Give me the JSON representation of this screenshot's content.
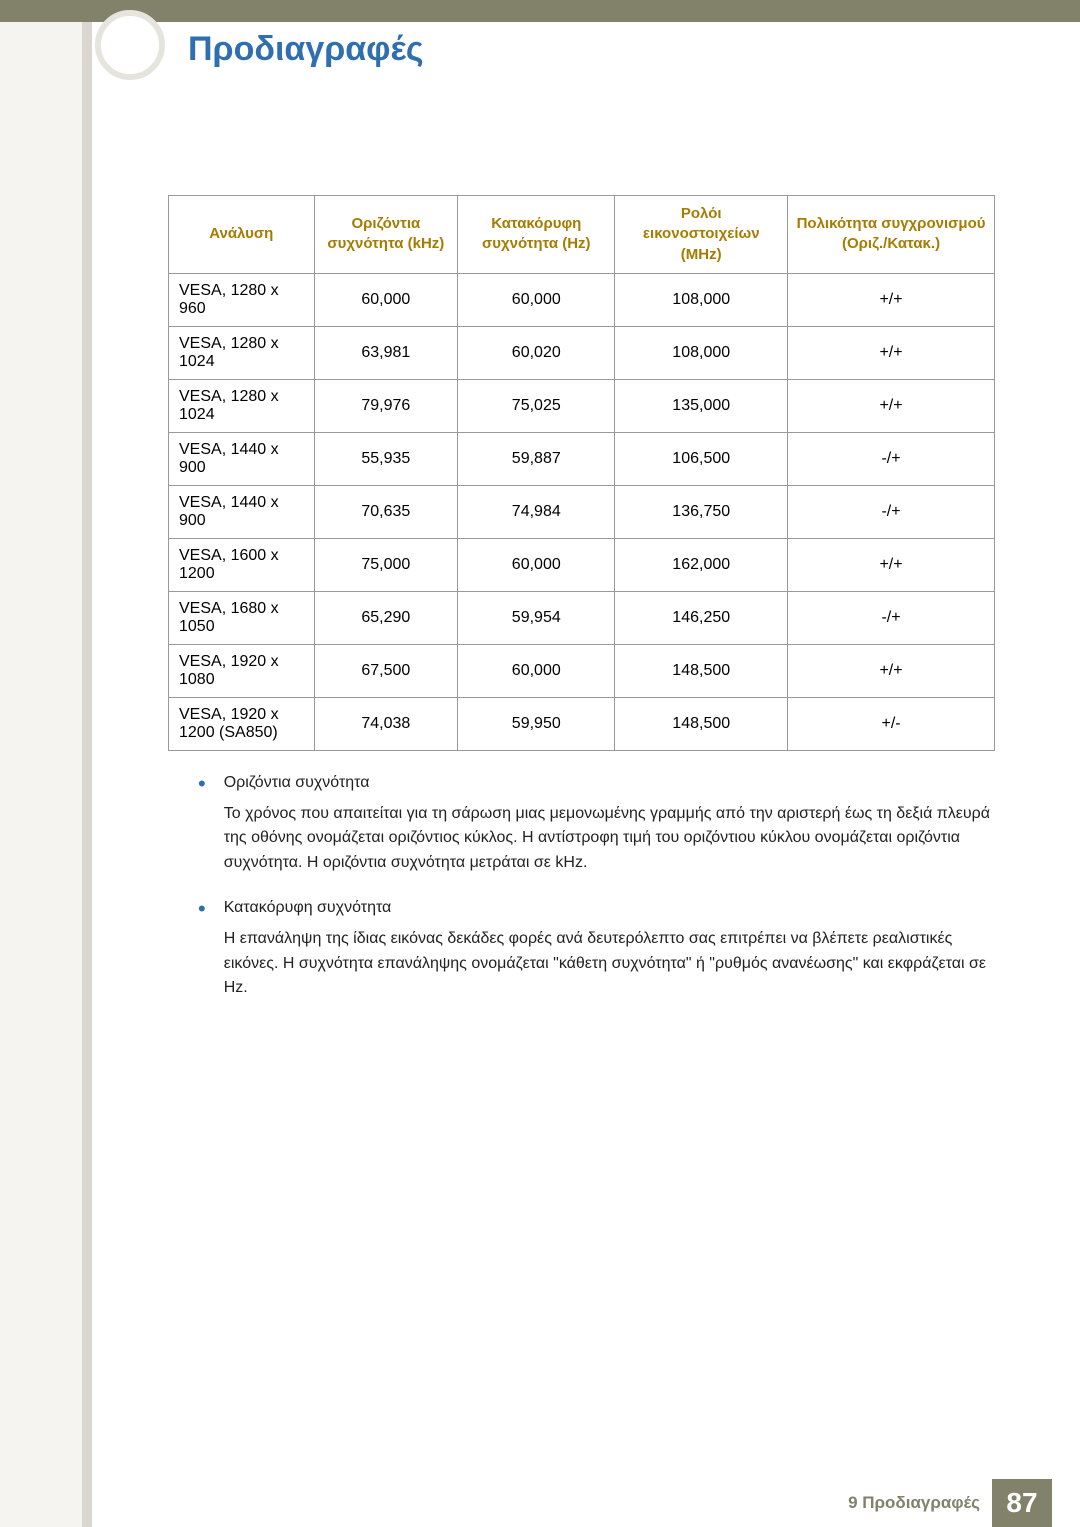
{
  "page_title": "Προδιαγραφές",
  "table": {
    "headers": {
      "resolution": "Ανάλυση",
      "hfreq": "Οριζόντια συχνότητα (kHz)",
      "vfreq": "Κατακόρυφη συχνότητα (Hz)",
      "pclock": "Ρολόι εικονοστοιχείων (MHz)",
      "polarity": "Πολικότητα συγχρονισμού (Οριζ./Κατακ.)"
    },
    "rows": [
      {
        "res": "VESA, 1280 x 960",
        "h": "60,000",
        "v": "60,000",
        "p": "108,000",
        "pol": "+/+"
      },
      {
        "res": "VESA, 1280 x 1024",
        "h": "63,981",
        "v": "60,020",
        "p": "108,000",
        "pol": "+/+"
      },
      {
        "res": "VESA, 1280 x 1024",
        "h": "79,976",
        "v": "75,025",
        "p": "135,000",
        "pol": "+/+"
      },
      {
        "res": "VESA, 1440 x 900",
        "h": "55,935",
        "v": "59,887",
        "p": "106,500",
        "pol": "-/+"
      },
      {
        "res": "VESA, 1440 x 900",
        "h": "70,635",
        "v": "74,984",
        "p": "136,750",
        "pol": "-/+"
      },
      {
        "res": "VESA, 1600 x 1200",
        "h": "75,000",
        "v": "60,000",
        "p": "162,000",
        "pol": "+/+"
      },
      {
        "res": "VESA, 1680 x 1050",
        "h": "65,290",
        "v": "59,954",
        "p": "146,250",
        "pol": "-/+"
      },
      {
        "res": "VESA, 1920 x 1080",
        "h": "67,500",
        "v": "60,000",
        "p": "148,500",
        "pol": "+/+"
      },
      {
        "res": "VESA, 1920 x 1200 (SA850)",
        "h": "74,038",
        "v": "59,950",
        "p": "148,500",
        "pol": "+/-"
      }
    ]
  },
  "notes": [
    {
      "title": "Οριζόντια συχνότητα",
      "text": "Το χρόνος που απαιτείται για τη σάρωση μιας μεμονωμένης γραμμής από την αριστερή έως τη δεξιά πλευρά της οθόνης ονομάζεται οριζόντιος κύκλος. Η αντίστροφη τιμή του οριζόντιου κύκλου ονομάζεται οριζόντια συχνότητα. Η οριζόντια συχνότητα μετράται σε kHz."
    },
    {
      "title": "Κατακόρυφη συχνότητα",
      "text": "Η επανάληψη της ίδιας εικόνας δεκάδες φορές ανά δευτερόλεπτο σας επιτρέπει να βλέπετε ρεαλιστικές εικόνες. Η συχνότητα επανάληψης ονομάζεται \"κάθετη συχνότητα\" ή \"ρυθμός ανανέωσης\" και εκφράζεται σε Hz."
    }
  ],
  "footer": {
    "section": "9 Προδιαγραφές",
    "page": "87"
  },
  "colors": {
    "header_bar": "#82816a",
    "title": "#2f6fb0",
    "th_text": "#a67c00",
    "left_bg": "#f5f4f0"
  }
}
